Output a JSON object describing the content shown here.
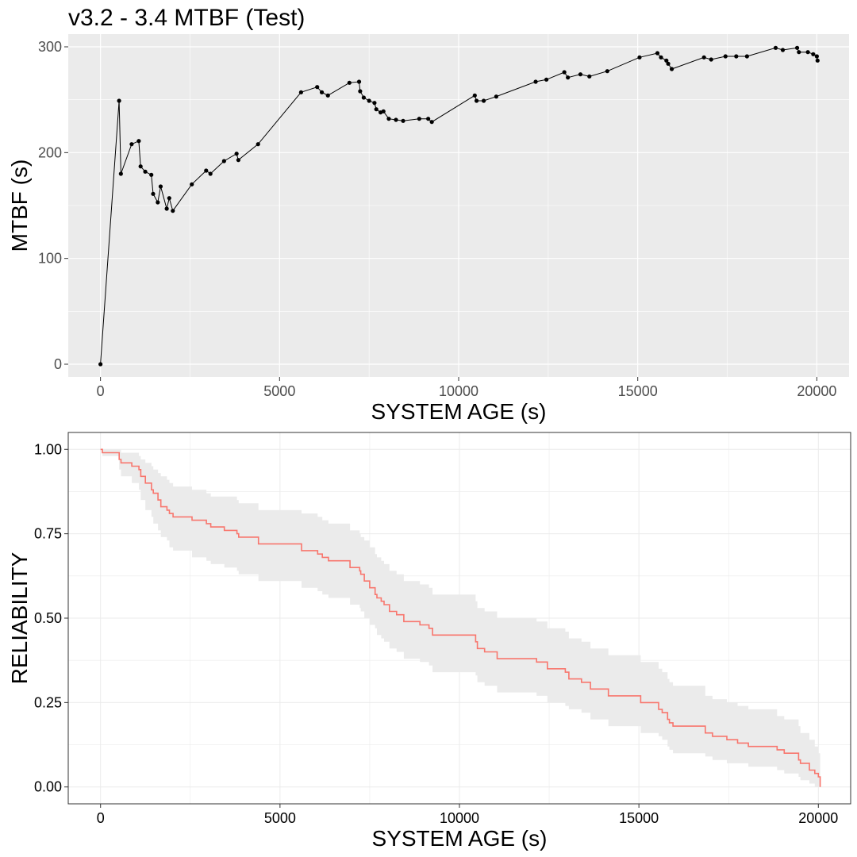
{
  "page_title": "v3.2 - 3.4 MTBF (Test)",
  "colors": {
    "panel_bg": "#EBEBEB",
    "grid": "#FFFFFF",
    "line": "#000000",
    "reliability_line": "#F8766D",
    "ci_band": "#EBEBEB",
    "bw_grid": "#EBEBEB",
    "axis_text": "#4D4D4D"
  },
  "chart_data": [
    {
      "type": "line",
      "title": "v3.2 - 3.4 MTBF (Test)",
      "xlabel": "SYSTEM AGE (s)",
      "ylabel": "MTBF (s)",
      "xlim": [
        -900,
        20900
      ],
      "ylim": [
        -12,
        312
      ],
      "xticks": [
        0,
        5000,
        10000,
        15000,
        20000
      ],
      "yticks": [
        0,
        100,
        200,
        300
      ],
      "grid": true,
      "x": [
        0,
        520,
        570,
        870,
        1070,
        1120,
        1250,
        1420,
        1470,
        1600,
        1680,
        1850,
        1920,
        2020,
        2550,
        2950,
        3070,
        3450,
        3800,
        3850,
        4400,
        5600,
        6050,
        6180,
        6350,
        6950,
        7220,
        7250,
        7350,
        7500,
        7650,
        7700,
        7820,
        7900,
        8050,
        8250,
        8450,
        8900,
        9150,
        9250,
        10450,
        10500,
        10700,
        11050,
        12150,
        12450,
        12950,
        13050,
        13400,
        13650,
        14150,
        15050,
        15550,
        15650,
        15800,
        15850,
        15950,
        16850,
        17050,
        17450,
        17750,
        18050,
        18850,
        19050,
        19450,
        19500,
        19750,
        19900,
        20000,
        20020
      ],
      "y": [
        0,
        249,
        180,
        208,
        211,
        187,
        182,
        179,
        161,
        153,
        168,
        147,
        157,
        145,
        170,
        183,
        180,
        192,
        199,
        193,
        208,
        257,
        262,
        257,
        254,
        266,
        267,
        258,
        252,
        249,
        247,
        241,
        238,
        239,
        232,
        231,
        230,
        232,
        232,
        229,
        254,
        249,
        249,
        253,
        267,
        269,
        276,
        271,
        274,
        272,
        277,
        290,
        294,
        290,
        287,
        284,
        279,
        290,
        288,
        291,
        291,
        291,
        299,
        297,
        299,
        295,
        295,
        293,
        291,
        287
      ]
    },
    {
      "type": "step",
      "title": "",
      "xlabel": "SYSTEM AGE (s)",
      "ylabel": "RELIABILITY",
      "xlim": [
        -900,
        20900
      ],
      "ylim": [
        -0.05,
        1.05
      ],
      "xticks": [
        0,
        5000,
        10000,
        15000,
        20000
      ],
      "yticks": [
        "0.00",
        "0.25",
        "0.50",
        "0.75",
        "1.00"
      ],
      "grid": true,
      "x": [
        0,
        50,
        520,
        570,
        870,
        1070,
        1120,
        1250,
        1420,
        1470,
        1600,
        1680,
        1850,
        1920,
        2020,
        2550,
        2950,
        3070,
        3450,
        3800,
        3850,
        4400,
        5600,
        6050,
        6180,
        6350,
        6950,
        7220,
        7250,
        7350,
        7500,
        7650,
        7700,
        7820,
        7900,
        8050,
        8250,
        8450,
        8900,
        9150,
        9250,
        10450,
        10500,
        10700,
        11050,
        12150,
        12450,
        12950,
        13050,
        13400,
        13650,
        14150,
        15050,
        15550,
        15650,
        15800,
        15850,
        15950,
        16850,
        17050,
        17450,
        17750,
        18050,
        18850,
        19050,
        19450,
        19500,
        19750,
        19900,
        20000,
        20050
      ],
      "survival": [
        1.0,
        0.99,
        0.97,
        0.96,
        0.95,
        0.94,
        0.92,
        0.9,
        0.88,
        0.87,
        0.85,
        0.83,
        0.82,
        0.81,
        0.8,
        0.79,
        0.78,
        0.77,
        0.76,
        0.75,
        0.74,
        0.72,
        0.7,
        0.69,
        0.68,
        0.67,
        0.65,
        0.64,
        0.63,
        0.61,
        0.59,
        0.57,
        0.56,
        0.55,
        0.54,
        0.52,
        0.51,
        0.49,
        0.48,
        0.47,
        0.45,
        0.43,
        0.41,
        0.4,
        0.38,
        0.37,
        0.35,
        0.34,
        0.32,
        0.31,
        0.29,
        0.27,
        0.25,
        0.23,
        0.22,
        0.2,
        0.19,
        0.18,
        0.16,
        0.15,
        0.14,
        0.13,
        0.12,
        0.11,
        0.1,
        0.08,
        0.07,
        0.05,
        0.04,
        0.03,
        0.01
      ],
      "lower": [
        1.0,
        0.98,
        0.94,
        0.92,
        0.9,
        0.88,
        0.85,
        0.82,
        0.8,
        0.78,
        0.76,
        0.74,
        0.73,
        0.71,
        0.7,
        0.68,
        0.67,
        0.66,
        0.65,
        0.64,
        0.63,
        0.61,
        0.59,
        0.58,
        0.57,
        0.56,
        0.54,
        0.53,
        0.52,
        0.5,
        0.48,
        0.47,
        0.45,
        0.44,
        0.43,
        0.41,
        0.4,
        0.38,
        0.37,
        0.36,
        0.34,
        0.33,
        0.31,
        0.3,
        0.28,
        0.27,
        0.25,
        0.24,
        0.23,
        0.22,
        0.2,
        0.18,
        0.16,
        0.15,
        0.14,
        0.12,
        0.11,
        0.1,
        0.09,
        0.08,
        0.07,
        0.07,
        0.06,
        0.05,
        0.04,
        0.03,
        0.02,
        0.01,
        0.0,
        0.0,
        0.0
      ],
      "upper": [
        1.0,
        1.0,
        1.0,
        0.99,
        0.99,
        0.98,
        0.97,
        0.96,
        0.95,
        0.94,
        0.93,
        0.92,
        0.91,
        0.9,
        0.89,
        0.88,
        0.87,
        0.86,
        0.86,
        0.85,
        0.84,
        0.82,
        0.81,
        0.8,
        0.79,
        0.78,
        0.76,
        0.75,
        0.74,
        0.73,
        0.71,
        0.69,
        0.68,
        0.67,
        0.66,
        0.64,
        0.63,
        0.61,
        0.6,
        0.59,
        0.57,
        0.55,
        0.53,
        0.52,
        0.5,
        0.49,
        0.47,
        0.46,
        0.44,
        0.43,
        0.41,
        0.39,
        0.37,
        0.35,
        0.34,
        0.32,
        0.31,
        0.3,
        0.27,
        0.26,
        0.25,
        0.24,
        0.23,
        0.21,
        0.2,
        0.18,
        0.16,
        0.14,
        0.12,
        0.1,
        0.08
      ]
    }
  ]
}
